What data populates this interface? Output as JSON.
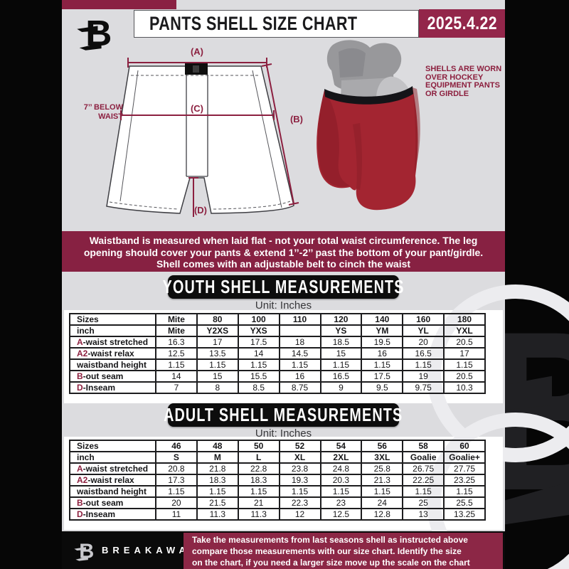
{
  "colors": {
    "accent_maroon": "#8a2143",
    "date_box_maroon": "#93264a",
    "footer_maroon": "#8c2746",
    "background_gray": "#dcdcdf",
    "black": "#0d0d0d",
    "shell_red": "#a32531"
  },
  "header": {
    "title": "PANTS SHELL SIZE CHART",
    "date": "2025.4.22"
  },
  "diagram": {
    "label_a": "(A)",
    "label_b": "(B)",
    "label_c": "(C)",
    "label_d": "(D)",
    "waist_note_line1": "7’’ BELOW",
    "waist_note_line2": "WAIST"
  },
  "photo_caption": "SHELLS ARE WORN OVER HOCKEY EQUIPMENT PANTS OR GIRDLE",
  "notice_lines": [
    "Waistband is measured when laid flat - not your total waist circumference. The leg",
    "opening should cover your pants & extend 1’’-2’’ past the bottom of your pant/girdle.",
    "Shell comes with an adjustable belt to cinch the waist"
  ],
  "youth": {
    "title": "YOUTH SHELL MEASUREMENTS",
    "unit": "Unit: Inches",
    "rows": [
      {
        "header": true,
        "prefix": "",
        "label": "Sizes",
        "values": [
          "Mite",
          "80",
          "100",
          "110",
          "120",
          "140",
          "160",
          "180"
        ]
      },
      {
        "header": true,
        "prefix": "",
        "label": "inch",
        "values": [
          "Mite",
          "Y2XS",
          "YXS",
          "",
          "YS",
          "YM",
          "YL",
          "YXL"
        ]
      },
      {
        "prefix": "A",
        "label": "-waist stretched",
        "values": [
          "16.3",
          "17",
          "17.5",
          "18",
          "18.5",
          "19.5",
          "20",
          "20.5"
        ]
      },
      {
        "prefix": "A2",
        "label": "-waist relax",
        "values": [
          "12.5",
          "13.5",
          "14",
          "14.5",
          "15",
          "16",
          "16.5",
          "17"
        ]
      },
      {
        "prefix": "",
        "label": "waistband height",
        "values": [
          "1.15",
          "1.15",
          "1.15",
          "1.15",
          "1.15",
          "1.15",
          "1.15",
          "1.15"
        ]
      },
      {
        "prefix": "B",
        "label": "-out seam",
        "values": [
          "14",
          "15",
          "15.5",
          "16",
          "16.5",
          "17.5",
          "19",
          "20.5"
        ]
      },
      {
        "prefix": "D",
        "label": "-Inseam",
        "values": [
          "7",
          "8",
          "8.5",
          "8.75",
          "9",
          "9.5",
          "9.75",
          "10.3"
        ]
      }
    ]
  },
  "adult": {
    "title": "ADULT SHELL MEASUREMENTS",
    "unit": "Unit: Inches",
    "rows": [
      {
        "header": true,
        "prefix": "",
        "label": "Sizes",
        "values": [
          "46",
          "48",
          "50",
          "52",
          "54",
          "56",
          "58",
          "60"
        ]
      },
      {
        "header": true,
        "prefix": "",
        "label": "inch",
        "values": [
          "S",
          "M",
          "L",
          "XL",
          "2XL",
          "3XL",
          "Goalie",
          "Goalie+"
        ]
      },
      {
        "prefix": "A",
        "label": "-waist stretched",
        "values": [
          "20.8",
          "21.8",
          "22.8",
          "23.8",
          "24.8",
          "25.8",
          "26.75",
          "27.75"
        ]
      },
      {
        "prefix": "A2",
        "label": "-waist relax",
        "values": [
          "17.3",
          "18.3",
          "18.3",
          "19.3",
          "20.3",
          "21.3",
          "22.25",
          "23.25"
        ]
      },
      {
        "prefix": "",
        "label": "waistband height",
        "values": [
          "1.15",
          "1.15",
          "1.15",
          "1.15",
          "1.15",
          "1.15",
          "1.15",
          "1.15"
        ]
      },
      {
        "prefix": "B",
        "label": "-out seam",
        "values": [
          "20",
          "21.5",
          "21",
          "22.3",
          "23",
          "24",
          "25",
          "25.5"
        ]
      },
      {
        "prefix": "D",
        "label": "-Inseam",
        "values": [
          "11",
          "11.3",
          "11.3",
          "12",
          "12.5",
          "12.8",
          "13",
          "13.25"
        ]
      }
    ]
  },
  "footer": {
    "brand": "BREAKAWAY",
    "lines": [
      "Take the measurements from last seasons shell as instructed above",
      "compare those measurements  with our size chart. Identify the size",
      "on the chart, if you need a larger size move up the scale on the chart"
    ]
  }
}
